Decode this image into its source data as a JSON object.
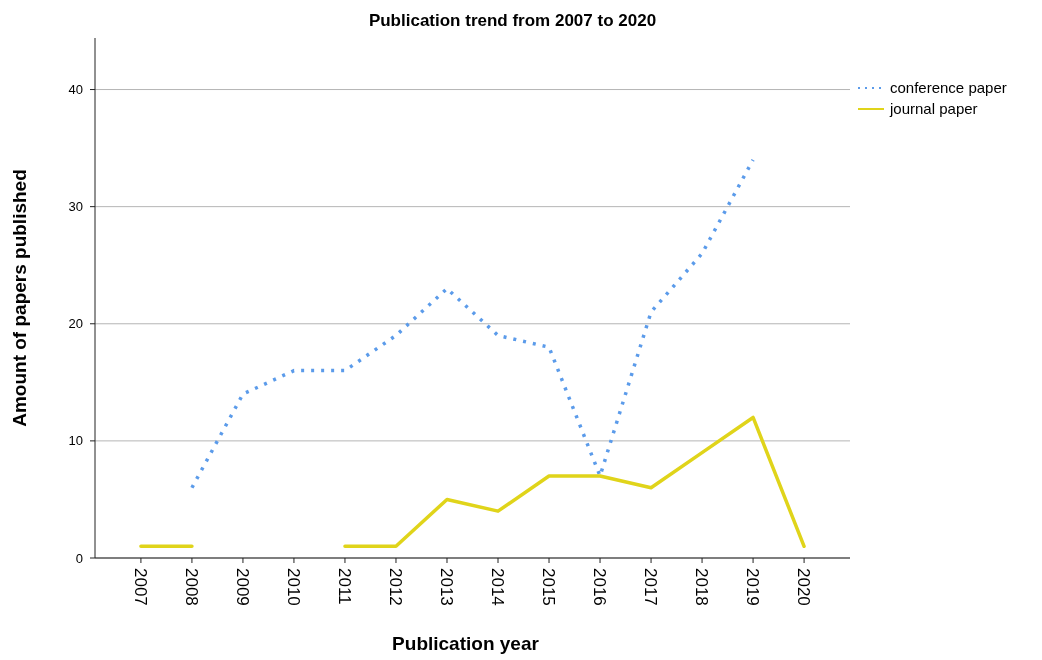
{
  "chart_data": {
    "type": "line",
    "title": "Publication trend from 2007 to 2020",
    "xlabel": "Publication year",
    "ylabel": "Amount of papers published",
    "categories": [
      "2007",
      "2008",
      "2009",
      "2010",
      "2011",
      "2012",
      "2013",
      "2014",
      "2015",
      "2016",
      "2017",
      "2018",
      "2019",
      "2020"
    ],
    "series": [
      {
        "name": "conference paper",
        "color": "#5b9bea",
        "line_style": "dotted",
        "values": [
          null,
          6,
          14,
          16,
          16,
          19,
          23,
          19,
          18,
          7,
          21,
          26,
          34,
          null
        ]
      },
      {
        "name": "journal paper",
        "color": "#e0d41a",
        "line_style": "solid",
        "values": [
          1,
          1,
          null,
          null,
          1,
          1,
          5,
          4,
          7,
          7,
          6,
          9,
          12,
          1
        ]
      }
    ],
    "ylim": [
      0,
      44.4
    ],
    "yticks": [
      0,
      10,
      20,
      30,
      40
    ],
    "grid": "y",
    "legend": "top right",
    "marker": "none"
  }
}
